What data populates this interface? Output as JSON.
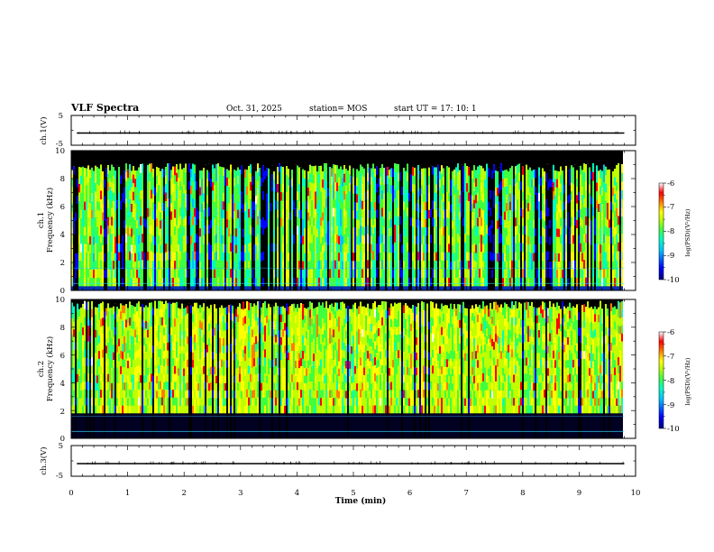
{
  "header": {
    "title": "VLF Spectra",
    "date": "Oct. 31, 2025",
    "station": "station= MOS",
    "start_ut": "start  UT =   17: 10: 1"
  },
  "chart_data": {
    "type": "heatmap",
    "title": "VLF Spectra",
    "xlabel": "Time  (min)",
    "xlim": [
      0,
      10
    ],
    "xticks": [
      "0",
      "1",
      "2",
      "3",
      "4",
      "5",
      "6",
      "7",
      "8",
      "9",
      "10"
    ],
    "data_end_min": 9.8,
    "panels": [
      {
        "name": "ch1-waveform",
        "type": "line",
        "ylabel": "ch.1(V)",
        "ylim": [
          -5,
          5
        ],
        "yticks": [
          "5",
          "-5"
        ],
        "baseline_v": 0
      },
      {
        "name": "ch1-spectrogram",
        "type": "heatmap",
        "ylabel_top": "ch.1",
        "ylabel_bottom": "Frequency  (kHz)",
        "ylim": [
          0,
          10
        ],
        "yticks": [
          "10",
          "8",
          "6",
          "4",
          "2",
          "0"
        ],
        "band_khz": [
          0.3,
          8.8
        ],
        "colorbar_label": "log(PSD)(V²/Hz)",
        "colorbar_range": [
          -10,
          -6
        ],
        "colorbar_ticks": [
          "-6",
          "-7",
          "-8",
          "-9",
          "-10"
        ]
      },
      {
        "name": "ch2-spectrogram",
        "type": "heatmap",
        "ylabel_top": "ch.2",
        "ylabel_bottom": "Frequency  (kHz)",
        "ylim": [
          0,
          10
        ],
        "yticks": [
          "10",
          "8",
          "6",
          "4",
          "2",
          "0"
        ],
        "band_khz": [
          1.8,
          9.6
        ],
        "colorbar_label": "log(PSD)(V²/Hz)",
        "colorbar_range": [
          -10,
          -6
        ],
        "colorbar_ticks": [
          "-6",
          "-7",
          "-8",
          "-9",
          "-10"
        ]
      },
      {
        "name": "ch3-waveform",
        "type": "line",
        "ylabel": "ch.3(V)",
        "ylim": [
          -5,
          5
        ],
        "yticks": [
          "5",
          "-5"
        ],
        "baseline_v": 0
      }
    ],
    "colorscale": [
      "#00007f",
      "#0000ff",
      "#00bfff",
      "#00ffbf",
      "#3fff3f",
      "#bfff00",
      "#ffff00",
      "#ff7f00",
      "#ff0000",
      "#ffffff"
    ]
  }
}
